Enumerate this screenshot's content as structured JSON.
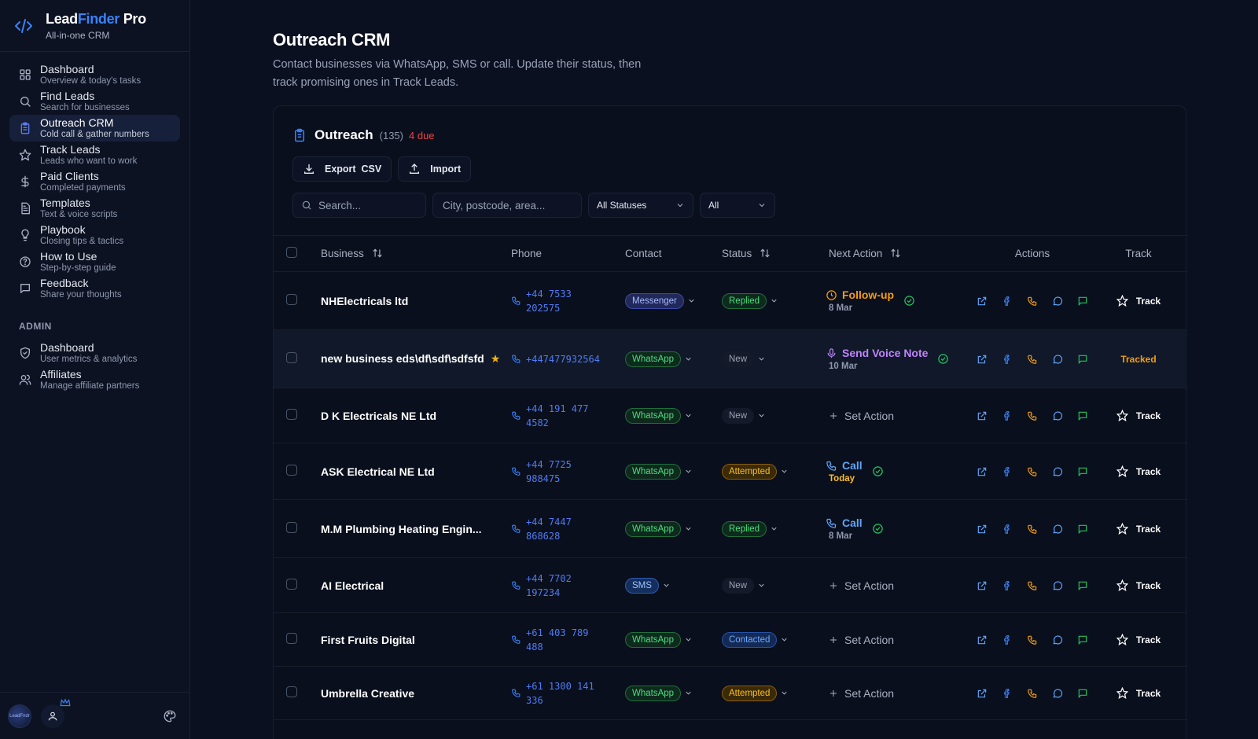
{
  "brand": {
    "name_a": "Lead",
    "name_b": "Finder",
    "name_c": " Pro",
    "subtitle": "All-in-one CRM",
    "accent": "#3b82f6"
  },
  "nav": [
    {
      "key": "dashboard",
      "title": "Dashboard",
      "desc": "Overview & today's tasks",
      "icon": "grid-icon"
    },
    {
      "key": "find-leads",
      "title": "Find Leads",
      "desc": "Search for businesses",
      "icon": "search-icon"
    },
    {
      "key": "outreach-crm",
      "title": "Outreach CRM",
      "desc": "Cold call & gather numbers",
      "icon": "clipboard-icon",
      "active": true
    },
    {
      "key": "track-leads",
      "title": "Track Leads",
      "desc": "Leads who want to work",
      "icon": "star-icon"
    },
    {
      "key": "paid-clients",
      "title": "Paid Clients",
      "desc": "Completed payments",
      "icon": "dollar-icon"
    },
    {
      "key": "templates",
      "title": "Templates",
      "desc": "Text & voice scripts",
      "icon": "document-icon"
    },
    {
      "key": "playbook",
      "title": "Playbook",
      "desc": "Closing tips & tactics",
      "icon": "lightbulb-icon"
    },
    {
      "key": "how-to-use",
      "title": "How to Use",
      "desc": "Step-by-step guide",
      "icon": "help-icon"
    },
    {
      "key": "feedback",
      "title": "Feedback",
      "desc": "Share your thoughts",
      "icon": "message-icon"
    }
  ],
  "admin": {
    "label": "ADMIN",
    "items": [
      {
        "key": "admin-dashboard",
        "title": "Dashboard",
        "desc": "User metrics & analytics",
        "icon": "shield-icon"
      },
      {
        "key": "affiliates",
        "title": "Affiliates",
        "desc": "Manage affiliate partners",
        "icon": "users-icon"
      }
    ]
  },
  "footer": {
    "avatar_text": "LeadFndr"
  },
  "page": {
    "title": "Outreach CRM",
    "description": "Contact businesses via WhatsApp, SMS or call. Update their status, then track promising ones in Track Leads."
  },
  "card": {
    "title": "Outreach",
    "count": "(135)",
    "due": "4 due",
    "export_label": "Export  CSV",
    "import_label": "Import",
    "search_placeholder": "Search...",
    "location_placeholder": "City, postcode, area...",
    "status_filter": "All Statuses",
    "type_filter": "All"
  },
  "columns": {
    "business": "Business",
    "phone": "Phone",
    "contact": "Contact",
    "status": "Status",
    "next_action": "Next Action",
    "actions": "Actions",
    "track": "Track"
  },
  "rows": [
    {
      "business": "NHElectricals ltd",
      "phone": "+44 7533 202575",
      "contact": "Messenger",
      "status": "Replied",
      "action_type": "followup",
      "action": "Follow-up",
      "action_date": "8 Mar",
      "done": true,
      "tracked": false
    },
    {
      "business": "new business eds\\df\\sdf\\sdfsfd",
      "starred": true,
      "phone": "+447477932564",
      "contact": "WhatsApp",
      "status": "New",
      "action_type": "voice",
      "action": "Send Voice Note",
      "action_date": "10 Mar",
      "done": true,
      "tracked": true
    },
    {
      "business": "D K Electricals NE Ltd",
      "phone": "+44 191 477 4582",
      "contact": "WhatsApp",
      "status": "New",
      "action_type": "set",
      "action": "Set Action",
      "tracked": false
    },
    {
      "business": "ASK Electrical NE Ltd",
      "phone": "+44 7725 988475",
      "contact": "WhatsApp",
      "status": "Attempted",
      "action_type": "call",
      "action": "Call",
      "action_date": "Today",
      "today": true,
      "done": true,
      "tracked": false
    },
    {
      "business": "M.M Plumbing Heating Engin...",
      "phone": "+44 7447 868628",
      "contact": "WhatsApp",
      "status": "Replied",
      "action_type": "call",
      "action": "Call",
      "action_date": "8 Mar",
      "done": true,
      "tracked": false
    },
    {
      "business": "AI Electrical",
      "phone": "+44 7702 197234",
      "contact": "SMS",
      "status": "New",
      "action_type": "set",
      "action": "Set Action",
      "tracked": false
    },
    {
      "business": "First Fruits Digital",
      "phone": "+61 403 789 488",
      "contact": "WhatsApp",
      "status": "Contacted",
      "action_type": "set",
      "action": "Set Action",
      "tracked": false
    },
    {
      "business": "Umbrella Creative",
      "phone": "+61 1300 141 336",
      "contact": "WhatsApp",
      "status": "Attempted",
      "action_type": "set",
      "action": "Set Action",
      "tracked": false
    }
  ],
  "track_label": "Track",
  "tracked_label": "Tracked",
  "colors": {
    "followup": "#f59e0b",
    "voice": "#c084fc",
    "call": "#60a5fa",
    "ok": "#22c55e",
    "facebook": "#3b82f6",
    "phone": "#f59e0b",
    "message": "#60a5fa",
    "sms": "#22c55e",
    "link": "#60a5fa"
  }
}
